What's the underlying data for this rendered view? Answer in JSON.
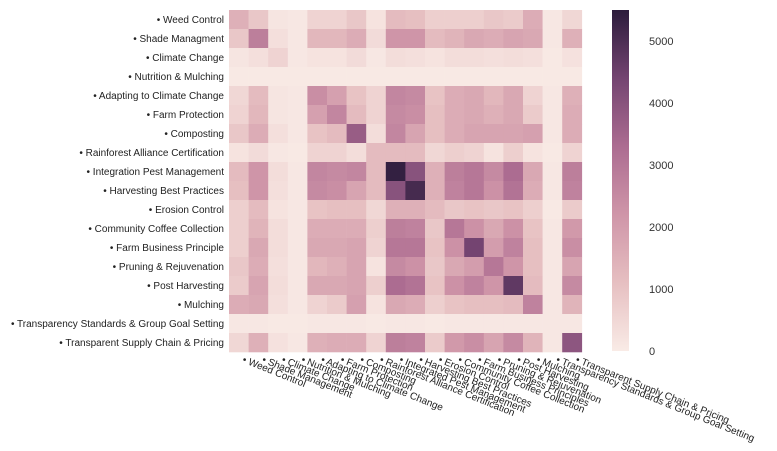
{
  "chart_data": {
    "type": "heatmap",
    "title": "",
    "xlabel": "",
    "ylabel": "",
    "label_prefix": "• ",
    "categories": [
      "Weed Control",
      "Shade Managment",
      "Climate Change",
      "Nutrition & Mulching",
      "Adapting to Climate Change",
      "Farm Protection",
      "Composting",
      "Rainforest Alliance Certification",
      "Integration Pest Management",
      "Harvesting Best Practices",
      "Erosion Control",
      "Community Coffee Collection",
      "Farm Business Principle",
      "Pruning & Rejuvenation",
      "Post Harvesting",
      "Mulching",
      "Transparency Standards & Group Goal Setting",
      "Transparent Supply Chain & Pricing"
    ],
    "x_categories": [
      "Weed Control",
      "Shade Management",
      "Climate Change",
      "Nutrition & Mulching",
      "Adapting to Climate Change",
      "Farm Protection",
      "Composting",
      "Rainforest Alliance Certification",
      "Integrated Pest Management",
      "Harvesting Best Practices",
      "Erosion Control",
      "Community Coffee Collection",
      "Farm Business Principles",
      "Pruning & Rejuvenation",
      "Post Harvesting",
      "Mulching",
      "Transparency Standards & Group Goal Setting",
      "Transparent Supply Chain & Pricing"
    ],
    "values": [
      [
        1500,
        900,
        150,
        100,
        600,
        600,
        900,
        200,
        1200,
        1100,
        700,
        700,
        700,
        900,
        800,
        1600,
        100,
        500
      ],
      [
        900,
        2800,
        300,
        100,
        1300,
        1300,
        1600,
        400,
        2200,
        2200,
        1200,
        1400,
        1700,
        1600,
        1800,
        1700,
        100,
        1500
      ],
      [
        150,
        300,
        600,
        100,
        200,
        200,
        400,
        100,
        350,
        300,
        200,
        350,
        350,
        300,
        350,
        300,
        50,
        250
      ],
      [
        50,
        50,
        50,
        50,
        50,
        50,
        50,
        50,
        50,
        50,
        50,
        50,
        50,
        50,
        50,
        50,
        50,
        50
      ],
      [
        500,
        1200,
        150,
        100,
        2400,
        1900,
        1000,
        600,
        2600,
        2500,
        1000,
        1600,
        1700,
        1300,
        1700,
        600,
        100,
        1500
      ],
      [
        600,
        1300,
        150,
        100,
        1900,
        2600,
        1200,
        600,
        2500,
        2400,
        1100,
        1600,
        1700,
        1500,
        1700,
        800,
        100,
        1600
      ],
      [
        900,
        1600,
        300,
        100,
        1000,
        1200,
        3700,
        350,
        2600,
        1800,
        1100,
        1600,
        1800,
        1800,
        1800,
        1900,
        100,
        1600
      ],
      [
        200,
        400,
        100,
        50,
        600,
        600,
        350,
        1200,
        1200,
        1200,
        500,
        700,
        600,
        200,
        700,
        200,
        50,
        600
      ],
      [
        1200,
        2200,
        350,
        100,
        2600,
        2500,
        2600,
        1200,
        5400,
        4000,
        1500,
        2800,
        3000,
        2500,
        3300,
        1700,
        100,
        2800
      ],
      [
        1100,
        2200,
        300,
        100,
        2500,
        2400,
        1800,
        1200,
        4000,
        5100,
        1500,
        2700,
        3000,
        2300,
        3100,
        1600,
        100,
        2700
      ],
      [
        700,
        1200,
        200,
        100,
        1000,
        1100,
        1100,
        500,
        1500,
        1500,
        1200,
        900,
        1000,
        900,
        1000,
        700,
        50,
        800
      ],
      [
        700,
        1400,
        350,
        100,
        1600,
        1600,
        1600,
        700,
        2800,
        2700,
        900,
        3000,
        2300,
        1700,
        2300,
        1000,
        100,
        2100
      ],
      [
        700,
        1700,
        350,
        100,
        1700,
        1700,
        1800,
        600,
        3000,
        3000,
        1000,
        2300,
        4400,
        2000,
        2700,
        1100,
        100,
        2400
      ],
      [
        900,
        1600,
        300,
        100,
        1300,
        1500,
        1800,
        200,
        2500,
        2300,
        900,
        1700,
        2000,
        3000,
        2200,
        1100,
        100,
        1800
      ],
      [
        800,
        1800,
        350,
        100,
        1700,
        1700,
        1800,
        700,
        3300,
        3100,
        1000,
        2300,
        2700,
        2200,
        4700,
        1200,
        100,
        2500
      ],
      [
        1600,
        1700,
        300,
        100,
        600,
        800,
        1900,
        200,
        1700,
        1600,
        700,
        1000,
        1100,
        1100,
        1200,
        2700,
        100,
        1400
      ],
      [
        100,
        100,
        50,
        50,
        100,
        100,
        100,
        50,
        100,
        100,
        50,
        100,
        100,
        100,
        100,
        100,
        100,
        100
      ],
      [
        500,
        1500,
        250,
        100,
        1500,
        1600,
        1600,
        600,
        2800,
        2700,
        800,
        2100,
        2400,
        1800,
        2500,
        1400,
        100,
        3900
      ]
    ],
    "vmin": 0,
    "vmax": 5500,
    "colorbar_ticks": [
      0,
      1000,
      2000,
      3000,
      4000,
      5000
    ],
    "grid": false,
    "legend": "right colorbar"
  }
}
